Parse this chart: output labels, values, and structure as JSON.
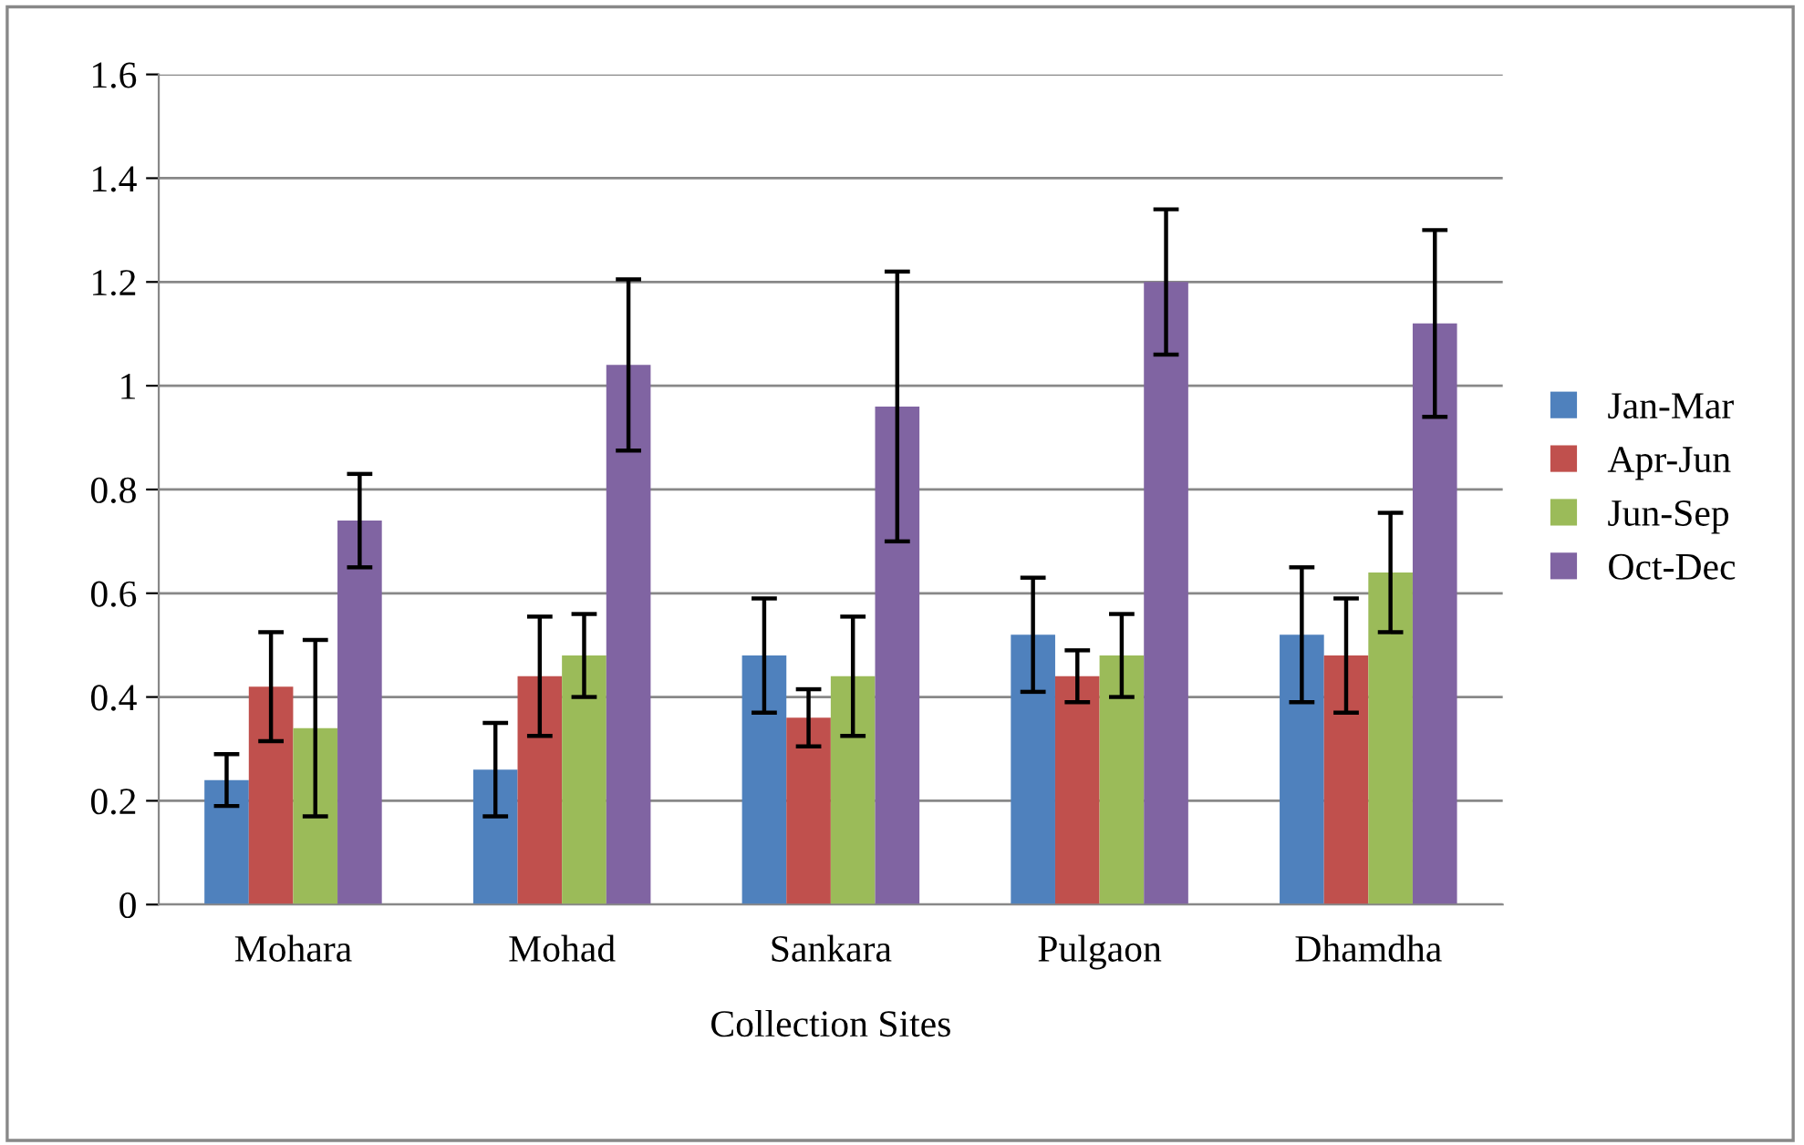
{
  "chart_data": {
    "type": "bar",
    "xlabel": "Collection Sites",
    "categories": [
      "Mohara",
      "Mohad",
      "Sankara",
      "Pulgaon",
      "Dhamdha"
    ],
    "series": [
      {
        "name": "Jan-Mar",
        "color": "#4f81bd",
        "values": [
          0.24,
          0.26,
          0.48,
          0.52,
          0.52
        ],
        "errors": [
          0.05,
          0.09,
          0.11,
          0.11,
          0.13
        ]
      },
      {
        "name": "Apr-Jun",
        "color": "#c0504d",
        "values": [
          0.42,
          0.44,
          0.36,
          0.44,
          0.48
        ],
        "errors": [
          0.105,
          0.115,
          0.055,
          0.05,
          0.11
        ]
      },
      {
        "name": "Jun-Sep",
        "color": "#9bbb59",
        "values": [
          0.34,
          0.48,
          0.44,
          0.48,
          0.64
        ],
        "errors": [
          0.17,
          0.08,
          0.115,
          0.08,
          0.115
        ]
      },
      {
        "name": "Oct-Dec",
        "color": "#8064a2",
        "values": [
          0.74,
          1.04,
          0.96,
          1.2,
          1.12
        ],
        "errors": [
          0.09,
          0.165,
          0.26,
          0.14,
          0.18
        ]
      }
    ],
    "ylim": [
      0,
      1.6
    ],
    "yticks": [
      0,
      {
        "value": 0.2,
        "label": "0.2"
      },
      {
        "value": 0.4,
        "label": "0.4"
      },
      {
        "value": 0.6,
        "label": "0.6"
      },
      {
        "value": 0.8,
        "label": "0.8"
      },
      1,
      {
        "value": 1.2,
        "label": "1.2"
      },
      {
        "value": 1.4,
        "label": "1.4"
      },
      {
        "value": 1.6,
        "label": "1.6"
      }
    ],
    "grid": "y",
    "legend": "right"
  }
}
